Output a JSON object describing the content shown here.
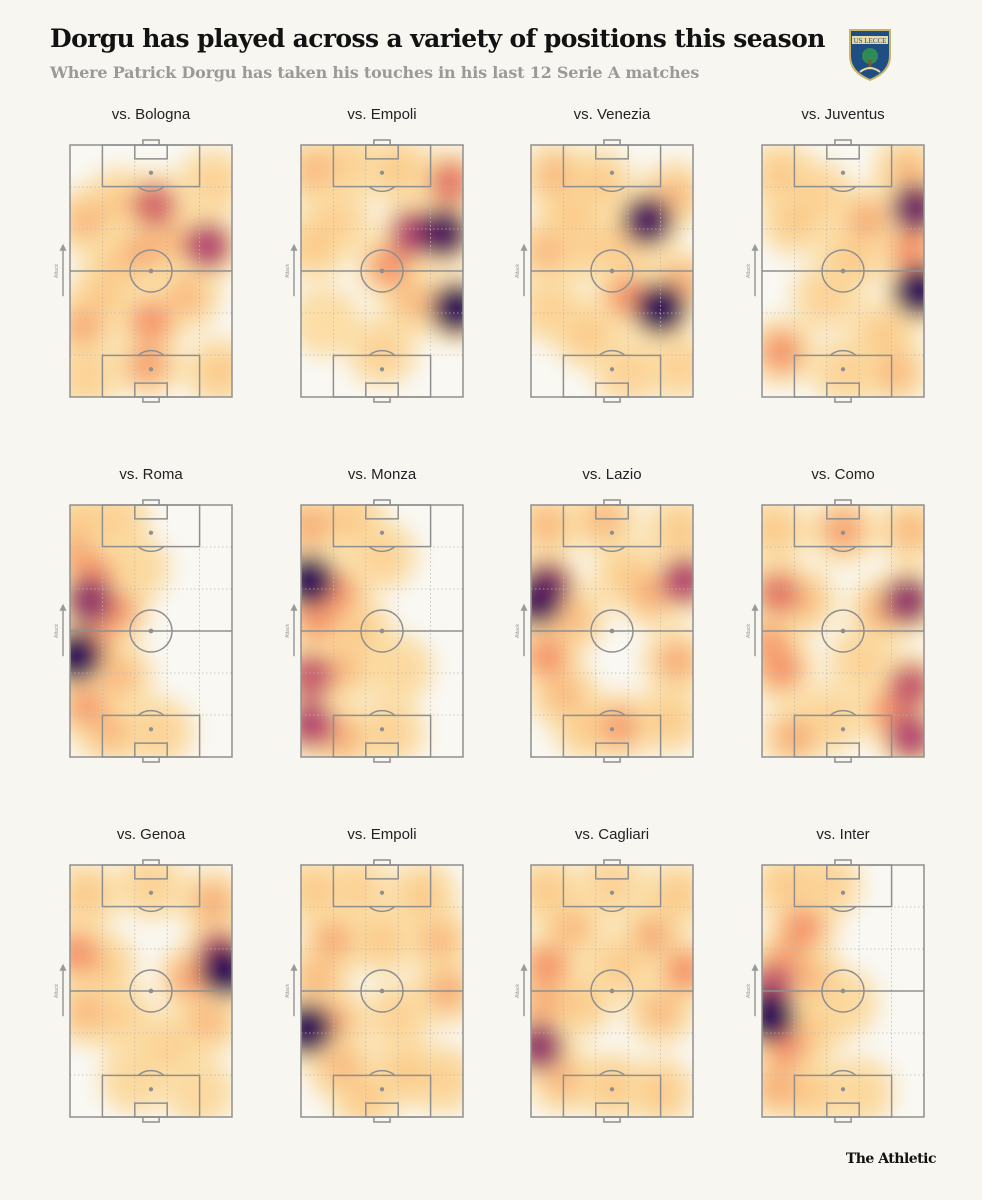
{
  "title": "Dorgu has played across a variety of positions this season",
  "subtitle": "Where Patrick Dorgu has taken his touches in his last 12 Serie A matches",
  "crest": {
    "label": "US LECCE",
    "icon": "lecce-crest-icon",
    "colors": {
      "shield": "#1f4e82",
      "wolf": "#e8d9a8",
      "tree": "#2e8b57"
    }
  },
  "brand": "The Athletic",
  "attack_label": "Attack",
  "colors": {
    "background": "#f7f6f1",
    "lines": "#8f8f8f",
    "heat_low": "#fff3b0",
    "heat_mid": "#f4986a",
    "heat_high": "#2c0c55"
  },
  "chart_data": {
    "type": "heatmap",
    "coordinate_system": "pitch fractions: x 0 = left touchline, 1 = right touchline; y 0 = attacking goal line, 1 = own goal line; w = intensity 0-1",
    "attack_direction": "up",
    "matches": [
      {
        "opponent": "vs. Bologna",
        "hotspots": [
          [
            0.1,
            0.3,
            0.4
          ],
          [
            0.3,
            0.23,
            0.35
          ],
          [
            0.52,
            0.24,
            0.7
          ],
          [
            0.85,
            0.4,
            0.8
          ],
          [
            0.72,
            0.6,
            0.4
          ],
          [
            0.45,
            0.42,
            0.45
          ],
          [
            0.3,
            0.48,
            0.35
          ],
          [
            0.5,
            0.7,
            0.55
          ],
          [
            0.08,
            0.72,
            0.45
          ],
          [
            0.2,
            0.6,
            0.35
          ],
          [
            0.48,
            0.87,
            0.5
          ],
          [
            0.92,
            0.9,
            0.35
          ],
          [
            0.1,
            0.92,
            0.3
          ],
          [
            0.88,
            0.15,
            0.3
          ],
          [
            0.65,
            0.38,
            0.4
          ]
        ]
      },
      {
        "opponent": "vs. Empoli",
        "hotspots": [
          [
            0.08,
            0.1,
            0.4
          ],
          [
            0.28,
            0.08,
            0.3
          ],
          [
            0.6,
            0.1,
            0.35
          ],
          [
            0.92,
            0.15,
            0.65
          ],
          [
            0.88,
            0.35,
            0.95
          ],
          [
            0.7,
            0.35,
            0.8
          ],
          [
            0.55,
            0.48,
            0.55
          ],
          [
            0.96,
            0.65,
            1.0
          ],
          [
            0.08,
            0.4,
            0.35
          ],
          [
            0.22,
            0.3,
            0.3
          ],
          [
            0.7,
            0.62,
            0.4
          ],
          [
            0.5,
            0.82,
            0.3
          ],
          [
            0.15,
            0.7,
            0.2
          ]
        ]
      },
      {
        "opponent": "vs. Venezia",
        "hotspots": [
          [
            0.15,
            0.12,
            0.4
          ],
          [
            0.42,
            0.15,
            0.35
          ],
          [
            0.88,
            0.2,
            0.4
          ],
          [
            0.72,
            0.3,
            0.95
          ],
          [
            0.1,
            0.42,
            0.4
          ],
          [
            0.35,
            0.4,
            0.3
          ],
          [
            0.8,
            0.65,
            1.0
          ],
          [
            0.6,
            0.6,
            0.55
          ],
          [
            0.92,
            0.55,
            0.45
          ],
          [
            0.35,
            0.75,
            0.35
          ],
          [
            0.6,
            0.9,
            0.3
          ],
          [
            0.92,
            0.88,
            0.3
          ],
          [
            0.12,
            0.65,
            0.3
          ],
          [
            0.25,
            0.28,
            0.35
          ],
          [
            0.55,
            0.4,
            0.35
          ]
        ]
      },
      {
        "opponent": "vs. Juventus",
        "hotspots": [
          [
            0.12,
            0.12,
            0.35
          ],
          [
            0.9,
            0.1,
            0.4
          ],
          [
            0.95,
            0.25,
            0.9
          ],
          [
            0.65,
            0.3,
            0.45
          ],
          [
            0.2,
            0.3,
            0.35
          ],
          [
            0.92,
            0.42,
            0.55
          ],
          [
            0.97,
            0.58,
            1.0
          ],
          [
            0.55,
            0.45,
            0.35
          ],
          [
            0.4,
            0.6,
            0.3
          ],
          [
            0.12,
            0.82,
            0.55
          ],
          [
            0.82,
            0.9,
            0.4
          ],
          [
            0.52,
            0.9,
            0.3
          ],
          [
            0.35,
            0.2,
            0.3
          ],
          [
            0.75,
            0.75,
            0.35
          ]
        ]
      },
      {
        "opponent": "vs. Roma",
        "hotspots": [
          [
            0.05,
            0.08,
            0.35
          ],
          [
            0.28,
            0.06,
            0.3
          ],
          [
            0.15,
            0.28,
            0.55
          ],
          [
            0.12,
            0.38,
            0.85
          ],
          [
            0.28,
            0.42,
            0.55
          ],
          [
            0.04,
            0.6,
            1.0
          ],
          [
            0.15,
            0.55,
            0.5
          ],
          [
            0.3,
            0.68,
            0.4
          ],
          [
            0.1,
            0.8,
            0.5
          ],
          [
            0.25,
            0.9,
            0.4
          ],
          [
            0.55,
            0.9,
            0.3
          ],
          [
            0.4,
            0.25,
            0.25
          ],
          [
            0.05,
            0.2,
            0.45
          ]
        ]
      },
      {
        "opponent": "vs. Monza",
        "hotspots": [
          [
            0.06,
            0.08,
            0.45
          ],
          [
            0.3,
            0.06,
            0.35
          ],
          [
            0.05,
            0.3,
            1.0
          ],
          [
            0.22,
            0.35,
            0.55
          ],
          [
            0.1,
            0.45,
            0.55
          ],
          [
            0.35,
            0.5,
            0.35
          ],
          [
            0.06,
            0.68,
            0.75
          ],
          [
            0.25,
            0.65,
            0.4
          ],
          [
            0.06,
            0.87,
            0.8
          ],
          [
            0.25,
            0.92,
            0.45
          ],
          [
            0.55,
            0.9,
            0.3
          ],
          [
            0.5,
            0.2,
            0.3
          ],
          [
            0.6,
            0.65,
            0.25
          ]
        ]
      },
      {
        "opponent": "vs. Lazio",
        "hotspots": [
          [
            0.1,
            0.08,
            0.4
          ],
          [
            0.45,
            0.06,
            0.4
          ],
          [
            0.92,
            0.1,
            0.35
          ],
          [
            0.1,
            0.32,
            0.85
          ],
          [
            0.04,
            0.38,
            0.95
          ],
          [
            0.95,
            0.3,
            0.8
          ],
          [
            0.75,
            0.35,
            0.45
          ],
          [
            0.6,
            0.28,
            0.35
          ],
          [
            0.25,
            0.45,
            0.4
          ],
          [
            0.1,
            0.6,
            0.55
          ],
          [
            0.9,
            0.62,
            0.45
          ],
          [
            0.2,
            0.75,
            0.4
          ],
          [
            0.55,
            0.88,
            0.5
          ],
          [
            0.85,
            0.85,
            0.35
          ],
          [
            0.35,
            0.88,
            0.35
          ]
        ]
      },
      {
        "opponent": "vs. Como",
        "hotspots": [
          [
            0.08,
            0.1,
            0.35
          ],
          [
            0.5,
            0.1,
            0.5
          ],
          [
            0.92,
            0.1,
            0.4
          ],
          [
            0.1,
            0.35,
            0.65
          ],
          [
            0.25,
            0.38,
            0.4
          ],
          [
            0.9,
            0.38,
            0.85
          ],
          [
            0.75,
            0.42,
            0.45
          ],
          [
            0.05,
            0.55,
            0.5
          ],
          [
            0.12,
            0.65,
            0.55
          ],
          [
            0.92,
            0.72,
            0.75
          ],
          [
            0.8,
            0.82,
            0.55
          ],
          [
            0.92,
            0.92,
            0.8
          ],
          [
            0.2,
            0.92,
            0.45
          ],
          [
            0.42,
            0.85,
            0.3
          ],
          [
            0.62,
            0.62,
            0.3
          ]
        ]
      },
      {
        "opponent": "vs. Genoa",
        "hotspots": [
          [
            0.1,
            0.12,
            0.35
          ],
          [
            0.5,
            0.08,
            0.3
          ],
          [
            0.88,
            0.15,
            0.45
          ],
          [
            0.05,
            0.35,
            0.55
          ],
          [
            0.2,
            0.4,
            0.35
          ],
          [
            0.92,
            0.35,
            0.75
          ],
          [
            0.96,
            0.42,
            1.0
          ],
          [
            0.75,
            0.45,
            0.5
          ],
          [
            0.1,
            0.58,
            0.4
          ],
          [
            0.3,
            0.6,
            0.3
          ],
          [
            0.85,
            0.62,
            0.4
          ],
          [
            0.6,
            0.72,
            0.3
          ],
          [
            0.4,
            0.85,
            0.25
          ],
          [
            0.8,
            0.9,
            0.25
          ]
        ]
      },
      {
        "opponent": "vs. Empoli",
        "hotspots": [
          [
            0.08,
            0.1,
            0.35
          ],
          [
            0.35,
            0.1,
            0.3
          ],
          [
            0.75,
            0.12,
            0.35
          ],
          [
            0.2,
            0.3,
            0.45
          ],
          [
            0.5,
            0.3,
            0.35
          ],
          [
            0.85,
            0.3,
            0.4
          ],
          [
            0.1,
            0.45,
            0.4
          ],
          [
            0.9,
            0.5,
            0.45
          ],
          [
            0.04,
            0.65,
            1.0
          ],
          [
            0.2,
            0.62,
            0.45
          ],
          [
            0.6,
            0.6,
            0.3
          ],
          [
            0.25,
            0.8,
            0.4
          ],
          [
            0.65,
            0.82,
            0.35
          ],
          [
            0.4,
            0.92,
            0.35
          ],
          [
            0.88,
            0.85,
            0.3
          ]
        ]
      },
      {
        "opponent": "vs. Cagliari",
        "hotspots": [
          [
            0.1,
            0.1,
            0.35
          ],
          [
            0.5,
            0.08,
            0.3
          ],
          [
            0.9,
            0.12,
            0.35
          ],
          [
            0.25,
            0.25,
            0.4
          ],
          [
            0.75,
            0.28,
            0.45
          ],
          [
            0.1,
            0.4,
            0.55
          ],
          [
            0.55,
            0.4,
            0.35
          ],
          [
            0.95,
            0.42,
            0.55
          ],
          [
            0.08,
            0.55,
            0.45
          ],
          [
            0.3,
            0.55,
            0.35
          ],
          [
            0.8,
            0.58,
            0.4
          ],
          [
            0.05,
            0.72,
            0.85
          ],
          [
            0.2,
            0.85,
            0.4
          ],
          [
            0.5,
            0.88,
            0.35
          ],
          [
            0.8,
            0.9,
            0.35
          ]
        ]
      },
      {
        "opponent": "vs. Inter",
        "hotspots": [
          [
            0.15,
            0.08,
            0.35
          ],
          [
            0.4,
            0.08,
            0.3
          ],
          [
            0.25,
            0.25,
            0.55
          ],
          [
            0.15,
            0.38,
            0.5
          ],
          [
            0.06,
            0.48,
            0.75
          ],
          [
            0.3,
            0.45,
            0.4
          ],
          [
            0.05,
            0.6,
            1.0
          ],
          [
            0.15,
            0.72,
            0.55
          ],
          [
            0.3,
            0.65,
            0.35
          ],
          [
            0.1,
            0.88,
            0.45
          ],
          [
            0.3,
            0.9,
            0.35
          ],
          [
            0.5,
            0.55,
            0.25
          ],
          [
            0.6,
            0.9,
            0.25
          ]
        ]
      }
    ]
  }
}
